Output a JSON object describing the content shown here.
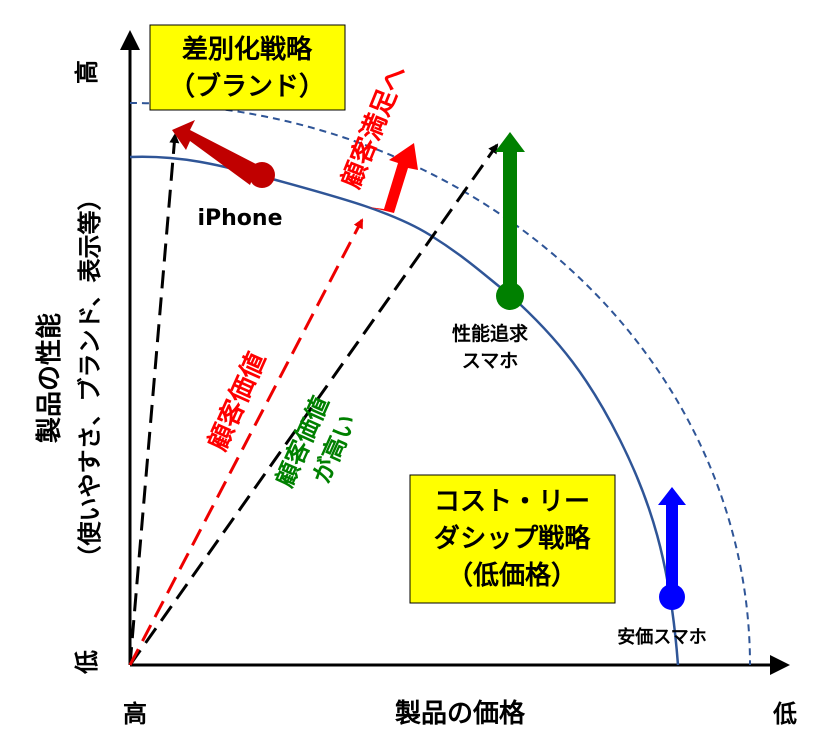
{
  "axes": {
    "y_high": "高",
    "y_low": "低",
    "x_high": "高",
    "x_low": "低",
    "y_label": [
      "製品の性能",
      "（使いやすさ、ブランド、表示等）"
    ],
    "x_label": "製品の価格"
  },
  "strategies": {
    "differentiation": [
      "差別化戦略",
      "（ブランド）"
    ],
    "cost_leadership": [
      "コスト・リー",
      "ダシップ戦略",
      "（低価格）"
    ]
  },
  "products": {
    "iphone": "iPhone",
    "performance": [
      "性能追求",
      "スマホ"
    ],
    "cheap": "安価スマホ"
  },
  "annotations": {
    "to_satisfaction": "顧客満足へ",
    "customer_value": "顧客価値",
    "high_value": [
      "顧客価値",
      "が高い"
    ]
  }
}
